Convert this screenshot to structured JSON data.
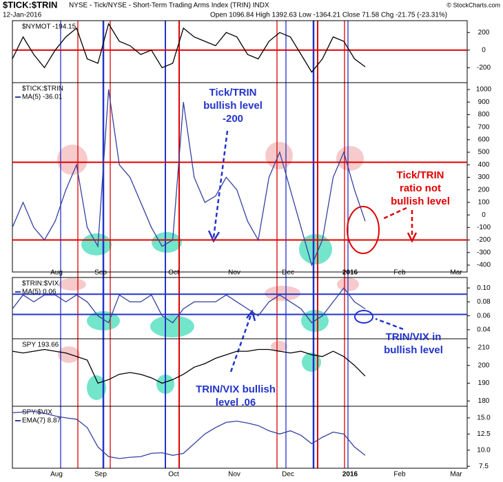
{
  "header": {
    "title": "$TICK:$TRIN",
    "subtitle": "NYSE - Tick/NYSE - Short-Term Trading Arms Index (TRIN) INDX",
    "date": "12-Jan-2016",
    "quote": "Open 1096.84 High 1392.63 Low -1364.21 Close 71.58 Chg -21.75 (-23.31%)",
    "credit": "© StockCharts.com"
  },
  "months": [
    "Aug",
    "Sep",
    "Oct",
    "Nov",
    "Dec",
    "2016",
    "Feb",
    "Mar"
  ],
  "chart_data": [
    {
      "type": "line",
      "title": "$NYMOT -194.15",
      "ylim": [
        -370,
        335
      ],
      "yticks": [
        200,
        0,
        -200
      ],
      "hlines": [
        {
          "value": 0,
          "color": "#e00000"
        }
      ],
      "series": [
        {
          "color": "#000000",
          "values": [
            -100,
            150,
            -50,
            -200,
            0,
            150,
            250,
            -100,
            -150,
            300,
            100,
            50,
            -50,
            0,
            -200,
            -150,
            250,
            150,
            100,
            50,
            200,
            150,
            -50,
            -100,
            100,
            200,
            150,
            -50,
            -250,
            -100,
            150,
            100,
            -100,
            -190
          ]
        }
      ]
    },
    {
      "type": "line",
      "title": "$TICK:$TRIN",
      "ylim": [
        -455,
        1055
      ],
      "yticks": [
        1000,
        900,
        800,
        700,
        600,
        500,
        400,
        300,
        200,
        100,
        0,
        -100,
        -200,
        -300,
        -400
      ],
      "hlines": [
        {
          "value": 420,
          "color": "#e00000"
        },
        {
          "value": -200,
          "color": "#e00000"
        }
      ],
      "series": [
        {
          "name": "MA(5) -36.01",
          "color": "#3340a0",
          "values": [
            -100,
            100,
            -100,
            -200,
            -50,
            200,
            400,
            -100,
            -250,
            1000,
            400,
            300,
            100,
            -100,
            -250,
            -200,
            900,
            300,
            100,
            150,
            300,
            200,
            -50,
            -200,
            300,
            500,
            200,
            -100,
            -400,
            -200,
            300,
            500,
            200,
            -50
          ]
        }
      ]
    },
    {
      "type": "line",
      "title": "$TRIN:$VIX",
      "ylim": [
        0.027,
        0.115
      ],
      "yticks": [
        {
          "value": 0.1,
          "label": "0.10"
        },
        0.08,
        0.06,
        0.04
      ],
      "hlines": [
        {
          "value": 0.091,
          "color": "#2233cc"
        },
        {
          "value": 0.062,
          "color": "#2233cc"
        }
      ],
      "series": [
        {
          "name": "MA(5) 0.06",
          "color": "#3340a0",
          "values": [
            0.07,
            0.09,
            0.08,
            0.09,
            0.09,
            0.08,
            0.09,
            0.08,
            0.06,
            0.05,
            0.09,
            0.08,
            0.08,
            0.09,
            0.06,
            0.05,
            0.07,
            0.08,
            0.08,
            0.08,
            0.09,
            0.08,
            0.07,
            0.06,
            0.08,
            0.09,
            0.08,
            0.07,
            0.05,
            0.06,
            0.08,
            0.1,
            0.08,
            0.07
          ]
        }
      ]
    },
    {
      "type": "line",
      "title": "SPY 193.66",
      "ylim": [
        177,
        215
      ],
      "yticks": [
        210,
        200,
        190,
        180
      ],
      "hlines": [],
      "series": [
        {
          "color": "#000000",
          "values": [
            208,
            207,
            208,
            209,
            208,
            207,
            205,
            203,
            190,
            192,
            195,
            196,
            195,
            193,
            190,
            192,
            195,
            199,
            201,
            204,
            206,
            208,
            208,
            209,
            209,
            208,
            207,
            208,
            206,
            205,
            208,
            205,
            200,
            194
          ]
        }
      ]
    },
    {
      "type": "line",
      "title": "SPY:$VIX",
      "ylim": [
        7.2,
        16.8
      ],
      "yticks": [
        {
          "value": 15,
          "label": "15.0"
        },
        12.5,
        {
          "value": 10,
          "label": "10.0"
        },
        7.5
      ],
      "hlines": [],
      "series": [
        {
          "name": "EMA(7) 8.87",
          "color": "#3340a0",
          "values": [
            15.8,
            15.9,
            16,
            15.7,
            15.3,
            15,
            14.8,
            13.5,
            10.5,
            9,
            8.7,
            8.9,
            9,
            9.5,
            9.6,
            9.2,
            9.5,
            11,
            12.5,
            13.5,
            14.3,
            14.5,
            14.2,
            13.8,
            13,
            12.5,
            13,
            12.3,
            11,
            12,
            12.8,
            12.5,
            10.5,
            9.2
          ]
        }
      ]
    }
  ],
  "annotations": [
    {
      "color": "#2233cc",
      "lines": [
        "Tick/TRIN",
        "bullish level",
        "-200"
      ]
    },
    {
      "color": "#e00000",
      "lines": [
        "Tick/TRIN",
        "ratio not",
        "bullish level"
      ]
    },
    {
      "color": "#2233cc",
      "lines": [
        "TRIN/VIX in",
        "bullish level"
      ]
    },
    {
      "color": "#2233cc",
      "lines": [
        "TRIN/VIX bullish",
        "level .06"
      ]
    }
  ]
}
